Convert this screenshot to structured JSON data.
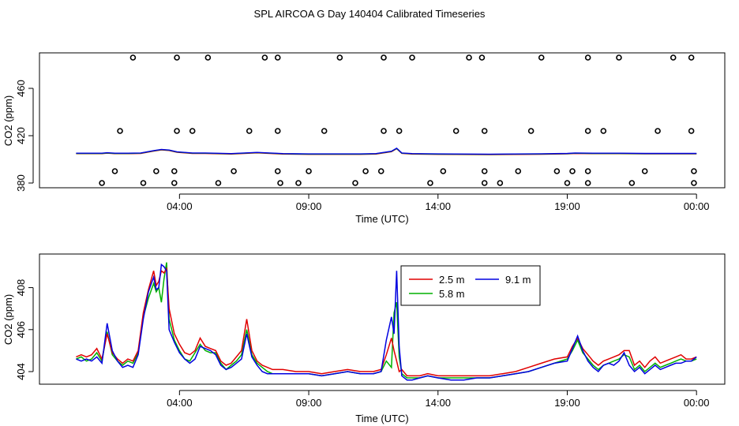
{
  "title": "SPL AIRCOA G  Day 140404  Calibrated Timeseries",
  "colors": {
    "s25": "#e00000",
    "s58": "#00b000",
    "s91": "#0000e0",
    "axis": "#000000",
    "points": "#000000"
  },
  "chart_data": [
    {
      "type": "scatter",
      "id": "top",
      "xlabel": "Time (UTC)",
      "ylabel": "CO2 (ppm)",
      "xlim": [
        -0.5,
        24.3
      ],
      "ylim": [
        376,
        490
      ],
      "xticks": [
        {
          "hour": 4,
          "label": "04:00"
        },
        {
          "hour": 9,
          "label": "09:00"
        },
        {
          "hour": 14,
          "label": "14:00"
        },
        {
          "hour": 19,
          "label": "19:00"
        },
        {
          "hour": 24,
          "label": "00:00"
        }
      ],
      "yticks": [
        {
          "v": 380,
          "label": "380"
        },
        {
          "v": 420,
          "label": "420"
        },
        {
          "v": 460,
          "label": "460"
        }
      ],
      "points_high": [
        2.2,
        3.9,
        5.1,
        7.3,
        7.8,
        10.2,
        11.9,
        13.0,
        15.2,
        15.7,
        18.0,
        19.8,
        21.0,
        23.1,
        23.8
      ],
      "points_mid": [
        1.7,
        3.9,
        4.5,
        6.7,
        7.8,
        9.6,
        11.9,
        12.5,
        14.7,
        15.8,
        17.6,
        19.8,
        20.4,
        22.5,
        23.8
      ],
      "points_low": [
        1.0,
        2.6,
        3.8,
        5.5,
        7.9,
        8.6,
        10.8,
        13.7,
        15.8,
        16.4,
        19.0,
        19.8,
        21.5,
        23.9
      ],
      "points_low2": [
        1.5,
        3.1,
        3.8,
        6.1,
        7.8,
        9.0,
        11.2,
        11.8,
        14.2,
        15.8,
        17.1,
        18.6,
        19.2,
        19.8,
        22.0,
        23.9
      ],
      "series": [
        {
          "name": "baseline",
          "x": [
            0,
            1.0,
            1.2,
            1.5,
            2.0,
            2.5,
            3.0,
            3.3,
            3.6,
            3.9,
            4.5,
            5.0,
            6.0,
            6.5,
            7.0,
            8.0,
            9.0,
            10.0,
            11.0,
            11.6,
            11.9,
            12.2,
            12.4,
            12.6,
            13.0,
            14.0,
            16.0,
            18.0,
            19.0,
            19.3,
            20.0,
            21.0,
            22.0,
            23.0,
            24.0
          ],
          "values": [
            404.8,
            404.8,
            405.2,
            404.8,
            404.8,
            405,
            407,
            408,
            407.5,
            406,
            405,
            405,
            404.5,
            405,
            405.5,
            404.5,
            404.2,
            404.2,
            404.2,
            404.5,
            405.5,
            406.5,
            409,
            405,
            404.5,
            404.2,
            404.0,
            404.3,
            404.6,
            405,
            404.8,
            404.8,
            404.6,
            404.6,
            404.6
          ]
        }
      ]
    },
    {
      "type": "line",
      "id": "bottom",
      "xlabel": "Time (UTC)",
      "ylabel": "CO2 (ppm)",
      "xlim": [
        -0.5,
        24.3
      ],
      "ylim": [
        403.4,
        409.6
      ],
      "xticks": [
        {
          "hour": 4,
          "label": "04:00"
        },
        {
          "hour": 9,
          "label": "09:00"
        },
        {
          "hour": 14,
          "label": "14:00"
        },
        {
          "hour": 19,
          "label": "19:00"
        },
        {
          "hour": 24,
          "label": "00:00"
        }
      ],
      "yticks": [
        {
          "v": 404,
          "label": "404"
        },
        {
          "v": 406,
          "label": "406"
        },
        {
          "v": 408,
          "label": "408"
        }
      ],
      "legend": [
        {
          "name": "2.5 m",
          "color": "#e00000"
        },
        {
          "name": "5.8 m",
          "color": "#00b000"
        },
        {
          "name": "9.1 m",
          "color": "#0000e0"
        }
      ],
      "x": [
        0,
        0.2,
        0.4,
        0.6,
        0.8,
        1.0,
        1.2,
        1.4,
        1.6,
        1.8,
        2.0,
        2.2,
        2.4,
        2.6,
        2.8,
        3.0,
        3.1,
        3.2,
        3.3,
        3.4,
        3.5,
        3.6,
        3.8,
        4.0,
        4.2,
        4.4,
        4.6,
        4.8,
        5.0,
        5.2,
        5.4,
        5.6,
        5.8,
        6.0,
        6.2,
        6.4,
        6.6,
        6.8,
        7.0,
        7.2,
        7.4,
        7.6,
        7.8,
        8.0,
        8.5,
        9.0,
        9.5,
        10.0,
        10.5,
        11.0,
        11.5,
        11.8,
        12.0,
        12.2,
        12.3,
        12.4,
        12.5,
        12.6,
        12.8,
        13.0,
        13.3,
        13.6,
        14.0,
        14.5,
        15.0,
        15.5,
        16.0,
        16.5,
        17.0,
        17.5,
        18.0,
        18.5,
        19.0,
        19.2,
        19.4,
        19.6,
        19.8,
        20.0,
        20.2,
        20.4,
        20.6,
        20.8,
        21.0,
        21.2,
        21.4,
        21.6,
        21.8,
        22.0,
        22.2,
        22.4,
        22.6,
        22.8,
        23.0,
        23.2,
        23.4,
        23.6,
        23.8,
        24.0
      ],
      "series": [
        {
          "name": "2.5 m",
          "values": [
            404.7,
            404.8,
            404.7,
            404.8,
            405.1,
            404.6,
            405.8,
            404.9,
            404.6,
            404.4,
            404.6,
            404.5,
            405.0,
            406.8,
            407.9,
            408.8,
            408.1,
            408.3,
            408.8,
            408.7,
            408.9,
            407.0,
            405.8,
            405.3,
            404.9,
            404.8,
            405.0,
            405.6,
            405.2,
            405.1,
            405.0,
            404.5,
            404.3,
            404.4,
            404.7,
            405.0,
            406.5,
            405.0,
            404.5,
            404.3,
            404.2,
            404.1,
            404.1,
            404.1,
            404.0,
            404.0,
            403.9,
            404.0,
            404.1,
            404.0,
            404.0,
            404.1,
            404.8,
            405.6,
            405.0,
            404.5,
            404.0,
            404.1,
            403.8,
            403.8,
            403.8,
            403.9,
            403.8,
            403.8,
            403.8,
            403.8,
            403.8,
            403.9,
            404.0,
            404.2,
            404.4,
            404.6,
            404.7,
            405.2,
            405.6,
            405.1,
            404.8,
            404.5,
            404.3,
            404.5,
            404.6,
            404.7,
            404.8,
            405.0,
            405.0,
            404.3,
            404.5,
            404.2,
            404.5,
            404.7,
            404.4,
            404.5,
            404.6,
            404.7,
            404.8,
            404.6,
            404.6,
            404.7
          ]
        },
        {
          "name": "5.8 m",
          "values": [
            404.6,
            404.7,
            404.5,
            404.6,
            404.9,
            404.5,
            405.9,
            404.8,
            404.5,
            404.3,
            404.5,
            404.4,
            404.9,
            406.6,
            407.5,
            408.2,
            407.8,
            408.0,
            407.3,
            408.4,
            409.2,
            406.5,
            405.5,
            405.0,
            404.6,
            404.5,
            404.9,
            405.3,
            405.0,
            404.9,
            404.9,
            404.4,
            404.1,
            404.3,
            404.5,
            404.8,
            406.0,
            404.8,
            404.4,
            404.2,
            404.0,
            403.9,
            403.9,
            403.9,
            403.9,
            403.9,
            403.8,
            403.9,
            404.0,
            403.9,
            403.9,
            404.0,
            404.5,
            404.2,
            406.8,
            407.3,
            404.7,
            403.9,
            403.7,
            403.7,
            403.7,
            403.8,
            403.7,
            403.7,
            403.7,
            403.7,
            403.7,
            403.8,
            403.9,
            404.0,
            404.2,
            404.4,
            404.6,
            405.0,
            405.5,
            404.9,
            404.6,
            404.3,
            404.1,
            404.3,
            404.4,
            404.5,
            404.6,
            404.8,
            404.7,
            404.1,
            404.3,
            404.0,
            404.2,
            404.4,
            404.2,
            404.3,
            404.4,
            404.5,
            404.6,
            404.5,
            404.5,
            404.6
          ]
        },
        {
          "name": "9.1 m",
          "values": [
            404.6,
            404.5,
            404.6,
            404.5,
            404.7,
            404.4,
            406.3,
            405.0,
            404.5,
            404.2,
            404.3,
            404.2,
            404.8,
            406.5,
            407.8,
            408.5,
            407.9,
            408.0,
            409.1,
            409.0,
            408.8,
            406.0,
            405.4,
            404.9,
            404.6,
            404.4,
            404.6,
            405.2,
            405.1,
            405.0,
            404.8,
            404.3,
            404.1,
            404.2,
            404.4,
            404.6,
            405.8,
            404.7,
            404.3,
            404.0,
            403.9,
            403.9,
            403.9,
            403.9,
            403.9,
            403.9,
            403.8,
            403.9,
            404.0,
            403.9,
            403.9,
            404.0,
            405.5,
            406.6,
            405.8,
            408.8,
            405.2,
            403.8,
            403.6,
            403.6,
            403.7,
            403.8,
            403.7,
            403.6,
            403.6,
            403.7,
            403.7,
            403.8,
            403.9,
            404.0,
            404.2,
            404.4,
            404.5,
            405.1,
            405.7,
            405.0,
            404.5,
            404.2,
            404.0,
            404.3,
            404.4,
            404.3,
            404.5,
            404.9,
            404.3,
            404.0,
            404.2,
            403.9,
            404.1,
            404.3,
            404.1,
            404.2,
            404.3,
            404.4,
            404.4,
            404.5,
            404.5,
            404.7
          ]
        }
      ]
    }
  ]
}
